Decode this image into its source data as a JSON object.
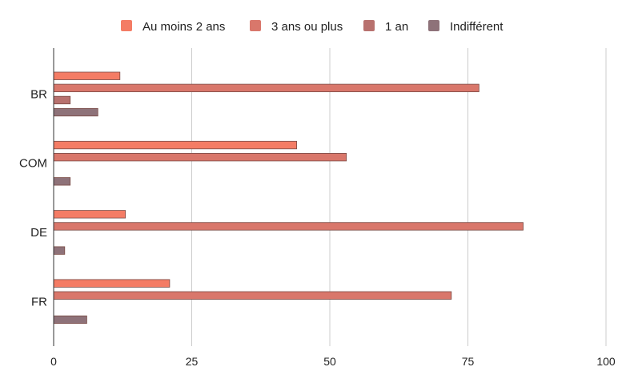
{
  "chart_data": {
    "type": "bar",
    "orientation": "horizontal",
    "title": "",
    "xlabel": "",
    "ylabel": "",
    "categories": [
      "BR",
      "COM",
      "DE",
      "FR"
    ],
    "series": [
      {
        "name": "Au moins 2 ans",
        "color": "#f47c65",
        "values": [
          12,
          44,
          13,
          21
        ]
      },
      {
        "name": "3 ans ou plus",
        "color": "#d9776b",
        "values": [
          77,
          53,
          85,
          72
        ]
      },
      {
        "name": "1 an",
        "color": "#b8716e",
        "values": [
          3,
          0,
          0,
          0
        ]
      },
      {
        "name": "Indifférent",
        "color": "#8e7279",
        "values": [
          8,
          3,
          2,
          6
        ]
      }
    ],
    "xlim": [
      0,
      100
    ],
    "x_ticks": [
      "0",
      "25",
      "50",
      "75",
      "100"
    ],
    "x_tick_values": [
      0,
      25,
      50,
      75,
      100
    ],
    "grid": "vertical",
    "legend_position": "top"
  }
}
